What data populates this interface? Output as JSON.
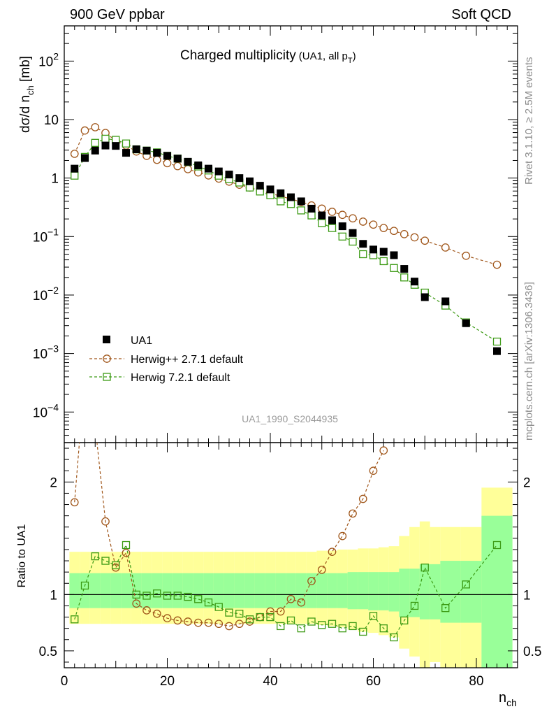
{
  "header": {
    "left": "900 GeV ppbar",
    "right": "Soft QCD"
  },
  "side": {
    "rivet": "Rivet 3.1.10, ≥ 2.5M events",
    "mcplots": "mcplots.cern.ch [arXiv:1306.3436]"
  },
  "main": {
    "title": "Charged multiplicity",
    "title_sub": "(UA1, all p",
    "title_sub_T": "T",
    "title_sub_end": ")",
    "ylabel": "dσ/d n",
    "ylabel_sub": "ch",
    "ylabel_unit": " [mb]",
    "analysis_id": "UA1_1990_S2044935"
  },
  "ratio": {
    "ylabel": "Ratio to UA1"
  },
  "xaxis": {
    "label": "n",
    "label_sub": "ch"
  },
  "legend": {
    "entries": [
      "UA1",
      "Herwig++ 2.7.1 default",
      "Herwig 7.2.1 default"
    ]
  },
  "colors": {
    "data": "#000000",
    "herwigpp": "#a0561a",
    "herwig7": "#3c9a14",
    "band_inner": "#99ff99",
    "band_outer": "#ffff99"
  },
  "chart_data": [
    {
      "type": "scatter",
      "yscale": "log",
      "xlim": [
        0,
        88
      ],
      "ylim": [
        3e-05,
        400
      ],
      "y_ticks": [
        "10^-4",
        "10^-3",
        "10^-2",
        "10^-1",
        "1",
        "10",
        "10^2"
      ],
      "series": [
        {
          "name": "UA1",
          "x": [
            2,
            4,
            6,
            8,
            10,
            12,
            14,
            16,
            18,
            20,
            22,
            24,
            26,
            28,
            30,
            32,
            34,
            36,
            38,
            40,
            42,
            44,
            46,
            48,
            50,
            52,
            54,
            56,
            58,
            60,
            62,
            64,
            66,
            68,
            70,
            74,
            78,
            84
          ],
          "y": [
            1.45,
            2.2,
            2.95,
            3.6,
            3.55,
            2.7,
            3.1,
            2.95,
            2.7,
            2.4,
            2.15,
            1.9,
            1.65,
            1.45,
            1.3,
            1.15,
            1.0,
            0.88,
            0.74,
            0.64,
            0.55,
            0.47,
            0.4,
            0.3,
            0.23,
            0.19,
            0.15,
            0.115,
            0.075,
            0.06,
            0.055,
            0.048,
            0.028,
            0.017,
            0.0092,
            0.0078,
            0.0033,
            0.0011
          ]
        },
        {
          "name": "Herwig++ 2.7.1 default",
          "x": [
            2,
            4,
            6,
            8,
            10,
            12,
            14,
            16,
            18,
            20,
            22,
            24,
            26,
            28,
            30,
            32,
            34,
            36,
            38,
            40,
            42,
            44,
            46,
            48,
            50,
            52,
            54,
            56,
            58,
            60,
            62,
            64,
            66,
            68,
            70,
            74,
            78,
            84
          ],
          "y": [
            2.6,
            6.5,
            7.4,
            5.9,
            4.4,
            3.6,
            2.85,
            2.4,
            2.05,
            1.8,
            1.6,
            1.42,
            1.25,
            1.11,
            0.98,
            0.87,
            0.77,
            0.69,
            0.61,
            0.55,
            0.49,
            0.44,
            0.39,
            0.34,
            0.3,
            0.265,
            0.235,
            0.205,
            0.18,
            0.16,
            0.14,
            0.125,
            0.11,
            0.097,
            0.085,
            0.065,
            0.047,
            0.033
          ]
        },
        {
          "name": "Herwig 7.2.1 default",
          "x": [
            2,
            4,
            6,
            8,
            10,
            12,
            14,
            16,
            18,
            20,
            22,
            24,
            26,
            28,
            30,
            32,
            34,
            36,
            38,
            40,
            42,
            44,
            46,
            48,
            50,
            52,
            54,
            56,
            58,
            60,
            62,
            64,
            66,
            68,
            70,
            74,
            78,
            84
          ],
          "y": [
            1.1,
            2.3,
            4.0,
            4.7,
            4.5,
            3.9,
            3.1,
            2.95,
            2.75,
            2.4,
            2.15,
            1.88,
            1.58,
            1.35,
            1.1,
            0.96,
            0.84,
            0.69,
            0.59,
            0.51,
            0.4,
            0.36,
            0.28,
            0.23,
            0.17,
            0.14,
            0.1,
            0.082,
            0.05,
            0.048,
            0.038,
            0.029,
            0.02,
            0.015,
            0.011,
            0.0066,
            0.0034,
            0.0016
          ]
        }
      ]
    },
    {
      "type": "line",
      "xlim": [
        0,
        88
      ],
      "ylim": [
        0.35,
        2.35
      ],
      "y_ticks": [
        0.5,
        1,
        2
      ],
      "x_ticks": [
        0,
        20,
        40,
        60,
        80
      ],
      "bands": {
        "bin_edges": [
          1,
          3,
          5,
          7,
          9,
          11,
          13,
          15,
          17,
          19,
          21,
          23,
          25,
          27,
          29,
          31,
          33,
          35,
          37,
          39,
          41,
          43,
          45,
          47,
          49,
          51,
          53,
          55,
          57,
          59,
          61,
          63,
          65,
          67,
          69,
          71,
          73,
          77,
          81,
          87
        ],
        "inner_up": [
          1.19,
          1.19,
          1.19,
          1.19,
          1.19,
          1.19,
          1.19,
          1.19,
          1.19,
          1.19,
          1.19,
          1.19,
          1.19,
          1.19,
          1.19,
          1.19,
          1.19,
          1.19,
          1.19,
          1.19,
          1.19,
          1.19,
          1.19,
          1.19,
          1.19,
          1.19,
          1.19,
          1.2,
          1.2,
          1.2,
          1.2,
          1.2,
          1.23,
          1.23,
          1.27,
          1.27,
          1.3,
          1.3,
          1.7
        ],
        "inner_down": [
          0.88,
          0.88,
          0.88,
          0.88,
          0.88,
          0.88,
          0.88,
          0.88,
          0.88,
          0.88,
          0.88,
          0.88,
          0.88,
          0.88,
          0.88,
          0.88,
          0.88,
          0.88,
          0.88,
          0.88,
          0.88,
          0.88,
          0.88,
          0.88,
          0.88,
          0.88,
          0.88,
          0.87,
          0.87,
          0.86,
          0.86,
          0.85,
          0.8,
          0.8,
          0.78,
          0.78,
          0.75,
          0.75,
          0.35
        ],
        "outer_up": [
          1.38,
          1.38,
          1.38,
          1.38,
          1.38,
          1.38,
          1.38,
          1.38,
          1.38,
          1.38,
          1.38,
          1.38,
          1.38,
          1.38,
          1.38,
          1.38,
          1.38,
          1.38,
          1.38,
          1.38,
          1.38,
          1.38,
          1.38,
          1.38,
          1.39,
          1.39,
          1.4,
          1.4,
          1.41,
          1.41,
          1.42,
          1.43,
          1.52,
          1.6,
          1.65,
          1.6,
          1.6,
          1.6,
          1.95
        ],
        "outer_down": [
          0.74,
          0.74,
          0.74,
          0.74,
          0.74,
          0.74,
          0.74,
          0.74,
          0.74,
          0.74,
          0.74,
          0.74,
          0.74,
          0.74,
          0.74,
          0.74,
          0.74,
          0.74,
          0.74,
          0.74,
          0.74,
          0.74,
          0.74,
          0.74,
          0.73,
          0.72,
          0.71,
          0.69,
          0.67,
          0.66,
          0.64,
          0.62,
          0.52,
          0.45,
          0.35,
          0.4,
          0.35,
          0.35,
          0.35
        ]
      },
      "reference_line": 1,
      "series": [
        {
          "name": "Herwig++ 2.7.1 default",
          "x": [
            2,
            4,
            6,
            8,
            10,
            12,
            14,
            16,
            18,
            20,
            22,
            24,
            26,
            28,
            30,
            32,
            34,
            36,
            38,
            40,
            42,
            44,
            46,
            48,
            50,
            52,
            54,
            56,
            58,
            60,
            62
          ],
          "y": [
            1.82,
            2.95,
            2.5,
            1.65,
            1.24,
            1.37,
            0.92,
            0.86,
            0.83,
            0.79,
            0.77,
            0.76,
            0.75,
            0.75,
            0.74,
            0.72,
            0.74,
            0.76,
            0.8,
            0.85,
            0.85,
            0.96,
            0.93,
            1.12,
            1.22,
            1.38,
            1.52,
            1.72,
            1.85,
            2.1,
            2.28
          ]
        },
        {
          "name": "Herwig 7.2.1 default",
          "x": [
            2,
            4,
            6,
            8,
            10,
            12,
            14,
            16,
            18,
            20,
            22,
            24,
            26,
            28,
            30,
            32,
            34,
            36,
            38,
            40,
            42,
            44,
            46,
            48,
            50,
            52,
            54,
            56,
            58,
            60,
            62,
            64,
            66,
            68,
            70,
            74,
            78,
            84
          ],
          "y": [
            0.78,
            1.08,
            1.34,
            1.3,
            1.26,
            1.44,
            1.0,
            0.99,
            1.01,
            0.99,
            0.99,
            0.98,
            0.96,
            0.93,
            0.89,
            0.84,
            0.83,
            0.78,
            0.8,
            0.8,
            0.72,
            0.77,
            0.7,
            0.76,
            0.73,
            0.74,
            0.7,
            0.72,
            0.67,
            0.81,
            0.7,
            0.62,
            0.77,
            0.9,
            1.24,
            0.88,
            1.09,
            1.44
          ]
        }
      ]
    }
  ]
}
